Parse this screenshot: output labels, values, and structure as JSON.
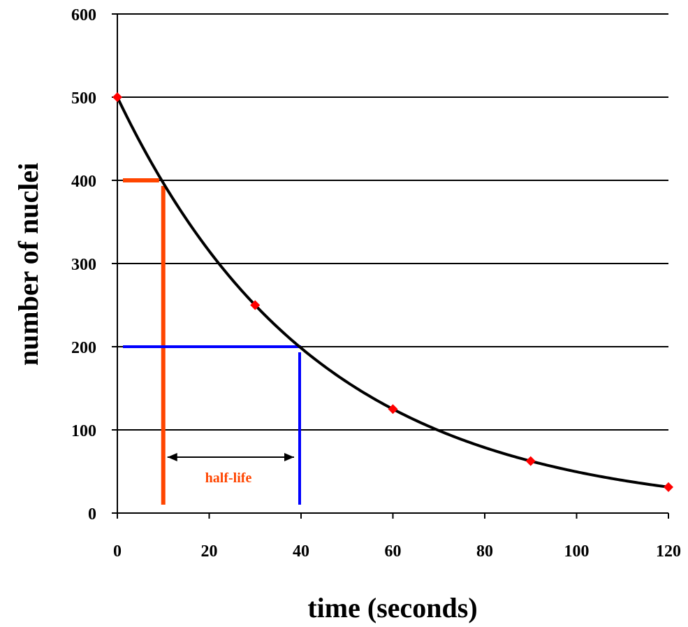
{
  "chart_data": {
    "type": "scatter",
    "title": "",
    "xlabel": "time (seconds)",
    "ylabel": "number of nuclei",
    "xlim": [
      0,
      120
    ],
    "ylim": [
      0,
      600
    ],
    "x_ticks": [
      0,
      20,
      40,
      60,
      80,
      100,
      120
    ],
    "y_ticks": [
      0,
      100,
      200,
      300,
      400,
      500,
      600
    ],
    "grid": "horizontal",
    "series": [
      {
        "kind": "points",
        "color": "#ff0000",
        "marker": "diamond",
        "points": [
          {
            "x": 0,
            "y": 500
          },
          {
            "x": 30,
            "y": 250
          },
          {
            "x": 60,
            "y": 125
          },
          {
            "x": 90,
            "y": 62.5
          },
          {
            "x": 120,
            "y": 31.25
          }
        ]
      },
      {
        "kind": "curve",
        "color": "#000000",
        "initial": 500,
        "half_life": 30,
        "x_range": [
          0,
          120
        ]
      }
    ],
    "annotations": {
      "label": "half-life",
      "label_color": "#ff4500",
      "first_reading": {
        "value": 400,
        "time": 10,
        "color": "#ff4500"
      },
      "second_reading": {
        "value": 200,
        "time": 40,
        "color": "#0000ff"
      }
    }
  }
}
